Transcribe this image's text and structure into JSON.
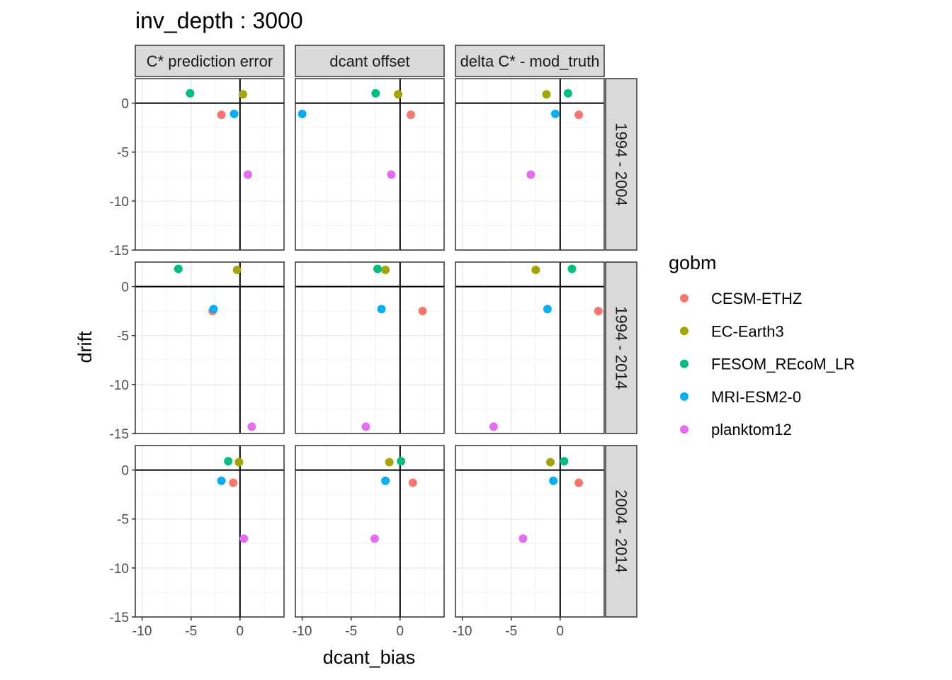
{
  "chart_data": {
    "type": "scatter",
    "title": "inv_depth : 3000",
    "xlabel": "dcant_bias",
    "ylabel": "drift",
    "xlim": [
      -10.7,
      4.5
    ],
    "ylim": [
      -15.0,
      2.5
    ],
    "x_ticks": [
      -10,
      -5,
      0
    ],
    "y_ticks": [
      0,
      -5,
      -10,
      -15
    ],
    "x_tick_labels": [
      "-10",
      "-5",
      "0"
    ],
    "y_tick_labels": [
      "0",
      "-5",
      "-10",
      "-15"
    ],
    "grid": true,
    "reference_lines": {
      "x": 0,
      "y": 0
    },
    "legend": {
      "title": "gobm",
      "position": "right"
    },
    "columns": [
      "C* prediction error",
      "dcant offset",
      "delta C* - mod_truth"
    ],
    "rows": [
      "1994 - 2004",
      "1994 - 2014",
      "2004 - 2014"
    ],
    "series": [
      {
        "name": "CESM-ETHZ",
        "color": "#F8766D"
      },
      {
        "name": "EC-Earth3",
        "color": "#A3A500"
      },
      {
        "name": "FESOM_REcoM_LR",
        "color": "#00BF7D"
      },
      {
        "name": "MRI-ESM2-0",
        "color": "#00B0F6"
      },
      {
        "name": "planktom12",
        "color": "#E76BF3"
      }
    ],
    "panels": [
      {
        "row": 0,
        "col": 0,
        "points": [
          {
            "series": 0,
            "x": -1.9,
            "y": -1.2
          },
          {
            "series": 1,
            "x": 0.3,
            "y": 0.9
          },
          {
            "series": 2,
            "x": -5.1,
            "y": 1.0
          },
          {
            "series": 3,
            "x": -0.6,
            "y": -1.1
          },
          {
            "series": 4,
            "x": 0.8,
            "y": -7.3
          }
        ]
      },
      {
        "row": 0,
        "col": 1,
        "points": [
          {
            "series": 0,
            "x": 1.1,
            "y": -1.2
          },
          {
            "series": 1,
            "x": -0.2,
            "y": 0.9
          },
          {
            "series": 2,
            "x": -2.5,
            "y": 1.0
          },
          {
            "series": 3,
            "x": -10.0,
            "y": -1.1
          },
          {
            "series": 4,
            "x": -0.9,
            "y": -7.3
          }
        ]
      },
      {
        "row": 0,
        "col": 2,
        "points": [
          {
            "series": 0,
            "x": 1.9,
            "y": -1.2
          },
          {
            "series": 1,
            "x": -1.4,
            "y": 0.9
          },
          {
            "series": 2,
            "x": 0.8,
            "y": 1.0
          },
          {
            "series": 3,
            "x": -0.5,
            "y": -1.1
          },
          {
            "series": 4,
            "x": -3.0,
            "y": -7.3
          }
        ]
      },
      {
        "row": 1,
        "col": 0,
        "points": [
          {
            "series": 0,
            "x": -2.8,
            "y": -2.5
          },
          {
            "series": 1,
            "x": -0.3,
            "y": 1.7
          },
          {
            "series": 2,
            "x": -6.3,
            "y": 1.8
          },
          {
            "series": 3,
            "x": -2.7,
            "y": -2.3
          },
          {
            "series": 4,
            "x": 1.2,
            "y": -14.3
          }
        ]
      },
      {
        "row": 1,
        "col": 1,
        "points": [
          {
            "series": 0,
            "x": 2.3,
            "y": -2.5
          },
          {
            "series": 1,
            "x": -1.5,
            "y": 1.7
          },
          {
            "series": 2,
            "x": -2.3,
            "y": 1.8
          },
          {
            "series": 3,
            "x": -1.9,
            "y": -2.3
          },
          {
            "series": 4,
            "x": -3.5,
            "y": -14.3
          }
        ]
      },
      {
        "row": 1,
        "col": 2,
        "points": [
          {
            "series": 0,
            "x": 3.9,
            "y": -2.5
          },
          {
            "series": 1,
            "x": -2.5,
            "y": 1.7
          },
          {
            "series": 2,
            "x": 1.2,
            "y": 1.8
          },
          {
            "series": 3,
            "x": -1.3,
            "y": -2.3
          },
          {
            "series": 4,
            "x": -6.8,
            "y": -14.3
          }
        ]
      },
      {
        "row": 2,
        "col": 0,
        "points": [
          {
            "series": 0,
            "x": -0.7,
            "y": -1.3
          },
          {
            "series": 1,
            "x": -0.1,
            "y": 0.8
          },
          {
            "series": 2,
            "x": -1.2,
            "y": 0.9
          },
          {
            "series": 3,
            "x": -1.9,
            "y": -1.1
          },
          {
            "series": 4,
            "x": 0.4,
            "y": -7.0
          }
        ]
      },
      {
        "row": 2,
        "col": 1,
        "points": [
          {
            "series": 0,
            "x": 1.3,
            "y": -1.3
          },
          {
            "series": 1,
            "x": -1.1,
            "y": 0.8
          },
          {
            "series": 2,
            "x": 0.1,
            "y": 0.9
          },
          {
            "series": 3,
            "x": -1.5,
            "y": -1.1
          },
          {
            "series": 4,
            "x": -2.6,
            "y": -7.0
          }
        ]
      },
      {
        "row": 2,
        "col": 2,
        "points": [
          {
            "series": 0,
            "x": 1.9,
            "y": -1.3
          },
          {
            "series": 1,
            "x": -1.0,
            "y": 0.8
          },
          {
            "series": 2,
            "x": 0.4,
            "y": 0.9
          },
          {
            "series": 3,
            "x": -0.7,
            "y": -1.1
          },
          {
            "series": 4,
            "x": -3.8,
            "y": -7.0
          }
        ]
      }
    ]
  }
}
